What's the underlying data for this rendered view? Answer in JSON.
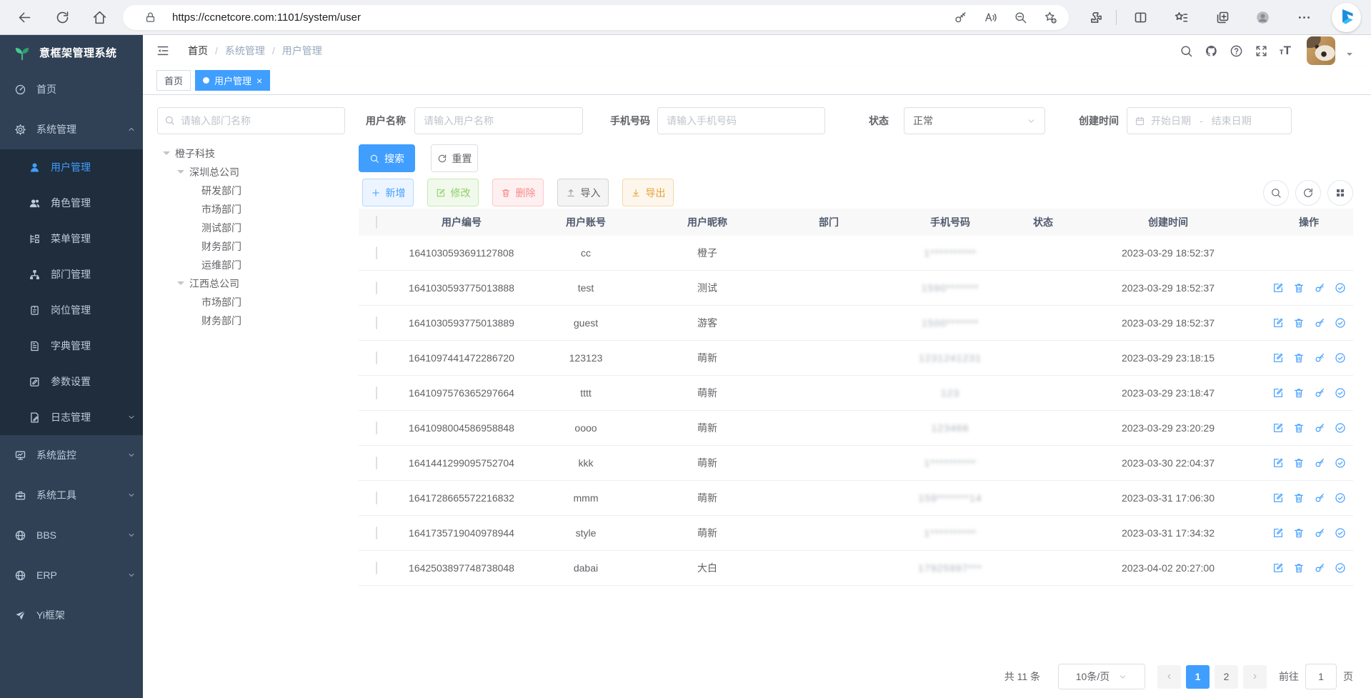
{
  "browser": {
    "url": "https://ccnetcore.com:1101/system/user"
  },
  "app": {
    "logo_text": "意框架管理系统"
  },
  "sidebar": {
    "items": [
      {
        "key": "home",
        "icon": "gauge",
        "label": "首页",
        "variant": "top",
        "active": false,
        "caret": null
      },
      {
        "key": "system",
        "icon": "gear",
        "label": "系统管理",
        "variant": "top",
        "active": false,
        "caret": "up"
      },
      {
        "key": "user",
        "icon": "user",
        "label": "用户管理",
        "variant": "sub",
        "active": true,
        "caret": null
      },
      {
        "key": "role",
        "icon": "users",
        "label": "角色管理",
        "variant": "sub",
        "active": false,
        "caret": null
      },
      {
        "key": "menu",
        "icon": "tree-list",
        "label": "菜单管理",
        "variant": "sub",
        "active": false,
        "caret": null
      },
      {
        "key": "dept",
        "icon": "org",
        "label": "部门管理",
        "variant": "sub",
        "active": false,
        "caret": null
      },
      {
        "key": "post",
        "icon": "badge",
        "label": "岗位管理",
        "variant": "sub",
        "active": false,
        "caret": null
      },
      {
        "key": "dict",
        "icon": "book",
        "label": "字典管理",
        "variant": "sub",
        "active": false,
        "caret": null
      },
      {
        "key": "param",
        "icon": "edit-square",
        "label": "参数设置",
        "variant": "sub",
        "active": false,
        "caret": null
      },
      {
        "key": "log",
        "icon": "log-doc",
        "label": "日志管理",
        "variant": "sub",
        "active": false,
        "caret": "down"
      },
      {
        "key": "monitor",
        "icon": "monitor",
        "label": "系统监控",
        "variant": "top",
        "active": false,
        "caret": "down"
      },
      {
        "key": "tool",
        "icon": "toolbox",
        "label": "系统工具",
        "variant": "top",
        "active": false,
        "caret": "down"
      },
      {
        "key": "bbs",
        "icon": "globe",
        "label": "BBS",
        "variant": "top",
        "active": false,
        "caret": "down"
      },
      {
        "key": "erp",
        "icon": "globe",
        "label": "ERP",
        "variant": "top",
        "active": false,
        "caret": "down"
      },
      {
        "key": "yi",
        "icon": "send",
        "label": "Yi框架",
        "variant": "top",
        "active": false,
        "caret": null
      }
    ]
  },
  "header": {
    "breadcrumb": [
      "首页",
      "系统管理",
      "用户管理"
    ],
    "separator": "/"
  },
  "tags": {
    "items": [
      {
        "label": "首页",
        "active": false
      },
      {
        "label": "用户管理",
        "active": true
      }
    ],
    "close_glyph": "×"
  },
  "filters": {
    "dept_placeholder": "请输入部门名称",
    "username_label": "用户名称",
    "username_placeholder": "请输入用户名称",
    "phone_label": "手机号码",
    "phone_placeholder": "请输入手机号码",
    "status_label": "状态",
    "status_value": "正常",
    "created_label": "创建时间",
    "date_start_placeholder": "开始日期",
    "date_separator": "-",
    "date_end_placeholder": "结束日期"
  },
  "tree": {
    "items": [
      {
        "label": "橙子科技",
        "level": 0,
        "expandable": true
      },
      {
        "label": "深圳总公司",
        "level": 1,
        "expandable": true
      },
      {
        "label": "研发部门",
        "level": 2,
        "expandable": false
      },
      {
        "label": "市场部门",
        "level": 2,
        "expandable": false
      },
      {
        "label": "测试部门",
        "level": 2,
        "expandable": false
      },
      {
        "label": "财务部门",
        "level": 2,
        "expandable": false
      },
      {
        "label": "运维部门",
        "level": 2,
        "expandable": false
      },
      {
        "label": "江西总公司",
        "level": 1,
        "expandable": true
      },
      {
        "label": "市场部门",
        "level": 2,
        "expandable": false
      },
      {
        "label": "财务部门",
        "level": 2,
        "expandable": false
      }
    ]
  },
  "toolbar": {
    "search_label": "搜索",
    "reset_label": "重置",
    "add_label": "新增",
    "edit_label": "修改",
    "delete_label": "删除",
    "import_label": "导入",
    "export_label": "导出"
  },
  "table": {
    "columns": [
      "用户编号",
      "用户账号",
      "用户昵称",
      "部门",
      "手机号码",
      "状态",
      "创建时间",
      "操作"
    ],
    "rows": [
      {
        "id": "1641030593691127808",
        "account": "cc",
        "nickname": "橙子",
        "dept": "",
        "phone": "1**********",
        "status": true,
        "created": "2023-03-29 18:52:37",
        "actions": false
      },
      {
        "id": "1641030593775013888",
        "account": "test",
        "nickname": "测试",
        "dept": "",
        "phone": "1590*******",
        "status": true,
        "created": "2023-03-29 18:52:37",
        "actions": true
      },
      {
        "id": "1641030593775013889",
        "account": "guest",
        "nickname": "游客",
        "dept": "",
        "phone": "1500*******",
        "status": true,
        "created": "2023-03-29 18:52:37",
        "actions": true
      },
      {
        "id": "1641097441472286720",
        "account": "123123",
        "nickname": "萌新",
        "dept": "",
        "phone": "1231241231",
        "status": true,
        "created": "2023-03-29 23:18:15",
        "actions": true
      },
      {
        "id": "1641097576365297664",
        "account": "tttt",
        "nickname": "萌新",
        "dept": "",
        "phone": "123",
        "status": true,
        "created": "2023-03-29 23:18:47",
        "actions": true
      },
      {
        "id": "1641098004586958848",
        "account": "oooo",
        "nickname": "萌新",
        "dept": "",
        "phone": "123466",
        "status": true,
        "created": "2023-03-29 23:20:29",
        "actions": true
      },
      {
        "id": "1641441299095752704",
        "account": "kkk",
        "nickname": "萌新",
        "dept": "",
        "phone": "1**********",
        "status": true,
        "created": "2023-03-30 22:04:37",
        "actions": true
      },
      {
        "id": "1641728665572216832",
        "account": "mmm",
        "nickname": "萌新",
        "dept": "",
        "phone": "159*******14",
        "status": true,
        "created": "2023-03-31 17:06:30",
        "actions": true
      },
      {
        "id": "1641735719040978944",
        "account": "style",
        "nickname": "萌新",
        "dept": "",
        "phone": "1**********",
        "status": true,
        "created": "2023-03-31 17:34:32",
        "actions": true
      },
      {
        "id": "1642503897748738048",
        "account": "dabai",
        "nickname": "大白",
        "dept": "",
        "phone": "17925997***",
        "status": true,
        "created": "2023-04-02 20:27:00",
        "actions": true
      }
    ]
  },
  "pagination": {
    "total": "共 11 条",
    "page_size": "10条/页",
    "prev": "‹",
    "next": "›",
    "pages": [
      "1",
      "2"
    ],
    "current": "1",
    "goto_label": "前往",
    "goto_value": "1",
    "unit": "页"
  }
}
